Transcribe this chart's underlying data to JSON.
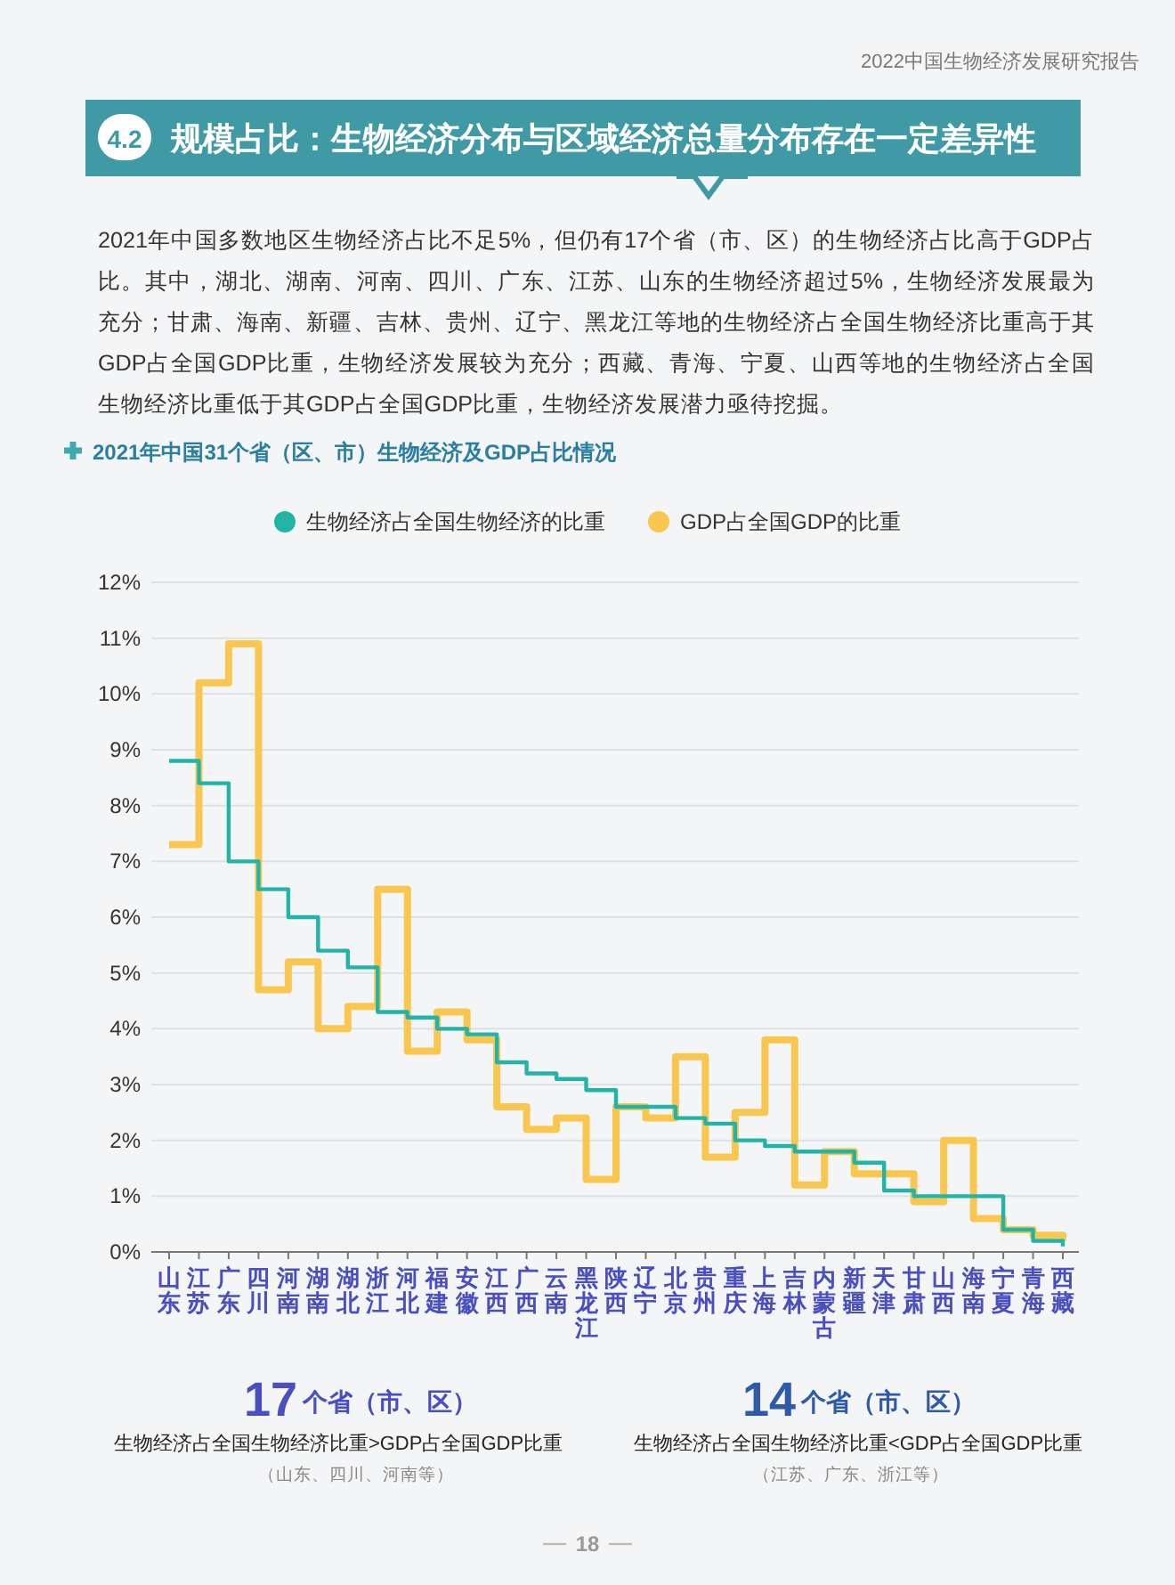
{
  "chart_data": {
    "type": "step",
    "title": "2021年中国31个省（区、市）生物经济及GDP占比情况",
    "annotations": [
      "2022中国生物经济发展研究报告",
      "4.2",
      "规模占比：生物经济分布与区域经济总量分布存在一定差异性",
      "2021年中国多数地区生物经济占比不足5%，但仍有17个省（市、区）的生物经济占比高于GDP占比。其中，湖北、湖南、河南、四川、广东、江苏、山东的生物经济超过5%，生物经济发展最为充分；甘肃、海南、新疆、吉林、贵州、辽宁、黑龙江等地的生物经济占全国生物经济比重高于其GDP占全国GDP比重，生物经济发展较为充分；西藏、青海、宁夏、山西等地的生物经济占全国生物经济比重低于其GDP占全国GDP比重，生物经济发展潜力亟待挖掘。",
      "17",
      "个省（市、区）",
      "生物经济占全国生物经济比重>GDP占全国GDP比重",
      "（山东、四川、河南等）",
      "14",
      "个省（市、区）",
      "生物经济占全国生物经济比重<GDP占全国GDP比重",
      "（江苏、广东、浙江等）",
      "18"
    ],
    "categories": [
      "山东",
      "江苏",
      "广东",
      "四川",
      "河南",
      "湖南",
      "湖北",
      "浙江",
      "河北",
      "福建",
      "安徽",
      "江西",
      "广西",
      "云南",
      "黑龙江",
      "陕西",
      "辽宁",
      "北京",
      "贵州",
      "重庆",
      "上海",
      "吉林",
      "内蒙古",
      "新疆",
      "天津",
      "甘肃",
      "山西",
      "海南",
      "宁夏",
      "青海",
      "西藏"
    ],
    "series": [
      {
        "name": "生物经济占全国生物经济的比重",
        "color": "#22b4a6",
        "values": [
          8.8,
          8.4,
          7.0,
          6.5,
          6.0,
          5.4,
          5.1,
          4.3,
          4.2,
          4.0,
          3.9,
          3.4,
          3.2,
          3.1,
          2.9,
          2.6,
          2.6,
          2.4,
          2.3,
          2.0,
          1.9,
          1.8,
          1.8,
          1.6,
          1.1,
          1.0,
          1.0,
          1.0,
          0.4,
          0.2,
          0.1
        ]
      },
      {
        "name": "GDP占全国GDP的比重",
        "color": "#f9c74f",
        "values": [
          7.3,
          10.2,
          10.9,
          4.7,
          5.2,
          4.0,
          4.4,
          6.5,
          3.6,
          4.3,
          3.8,
          2.6,
          2.2,
          2.4,
          1.3,
          2.6,
          2.4,
          3.5,
          1.7,
          2.5,
          3.8,
          1.2,
          1.8,
          1.4,
          1.4,
          0.9,
          2.0,
          0.6,
          0.4,
          0.3,
          0.2
        ]
      }
    ],
    "ylim": [
      0,
      12
    ],
    "yticks": [
      {
        "value": 0,
        "label": "0%"
      },
      {
        "value": 1,
        "label": "1%"
      },
      {
        "value": 2,
        "label": "2%"
      },
      {
        "value": 3,
        "label": "3%"
      },
      {
        "value": 4,
        "label": "4%"
      },
      {
        "value": 5,
        "label": "5%"
      },
      {
        "value": 6,
        "label": "6%"
      },
      {
        "value": 7,
        "label": "7%"
      },
      {
        "value": 8,
        "label": "8%"
      },
      {
        "value": 9,
        "label": "9%"
      },
      {
        "value": 10,
        "label": "10%"
      },
      {
        "value": 11,
        "label": "11%"
      },
      {
        "value": 12,
        "label": "12%"
      }
    ],
    "grid": "y",
    "legend": "top"
  }
}
